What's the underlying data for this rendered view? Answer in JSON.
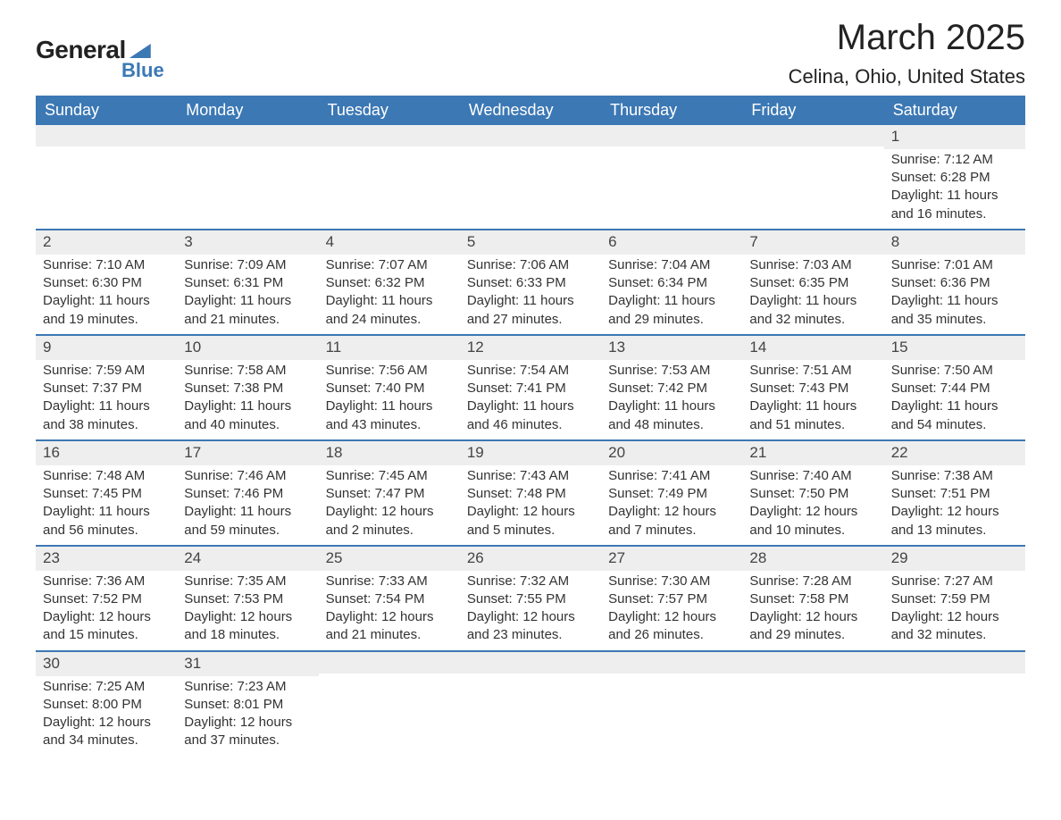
{
  "logo": {
    "main": "General",
    "sub": "Blue"
  },
  "title": "March 2025",
  "location": "Celina, Ohio, United States",
  "colors": {
    "header_bg": "#3c78b4",
    "header_fg": "#ffffff",
    "strip_bg": "#eeeeee",
    "text": "#333333",
    "border": "#3c78b4",
    "page_bg": "#ffffff"
  },
  "typography": {
    "title_fontsize": 40,
    "location_fontsize": 22,
    "header_fontsize": 18,
    "body_fontsize": 15
  },
  "layout": {
    "columns": 7,
    "rows": 6,
    "col_headers_align": "left"
  },
  "weekdays": [
    "Sunday",
    "Monday",
    "Tuesday",
    "Wednesday",
    "Thursday",
    "Friday",
    "Saturday"
  ],
  "labels": {
    "sunrise": "Sunrise:",
    "sunset": "Sunset:",
    "daylight": "Daylight:"
  },
  "weeks": [
    [
      {
        "empty": true
      },
      {
        "empty": true
      },
      {
        "empty": true
      },
      {
        "empty": true
      },
      {
        "empty": true
      },
      {
        "empty": true
      },
      {
        "day": "1",
        "sunrise": "7:12 AM",
        "sunset": "6:28 PM",
        "daylight": "11 hours and 16 minutes."
      }
    ],
    [
      {
        "day": "2",
        "sunrise": "7:10 AM",
        "sunset": "6:30 PM",
        "daylight": "11 hours and 19 minutes."
      },
      {
        "day": "3",
        "sunrise": "7:09 AM",
        "sunset": "6:31 PM",
        "daylight": "11 hours and 21 minutes."
      },
      {
        "day": "4",
        "sunrise": "7:07 AM",
        "sunset": "6:32 PM",
        "daylight": "11 hours and 24 minutes."
      },
      {
        "day": "5",
        "sunrise": "7:06 AM",
        "sunset": "6:33 PM",
        "daylight": "11 hours and 27 minutes."
      },
      {
        "day": "6",
        "sunrise": "7:04 AM",
        "sunset": "6:34 PM",
        "daylight": "11 hours and 29 minutes."
      },
      {
        "day": "7",
        "sunrise": "7:03 AM",
        "sunset": "6:35 PM",
        "daylight": "11 hours and 32 minutes."
      },
      {
        "day": "8",
        "sunrise": "7:01 AM",
        "sunset": "6:36 PM",
        "daylight": "11 hours and 35 minutes."
      }
    ],
    [
      {
        "day": "9",
        "sunrise": "7:59 AM",
        "sunset": "7:37 PM",
        "daylight": "11 hours and 38 minutes."
      },
      {
        "day": "10",
        "sunrise": "7:58 AM",
        "sunset": "7:38 PM",
        "daylight": "11 hours and 40 minutes."
      },
      {
        "day": "11",
        "sunrise": "7:56 AM",
        "sunset": "7:40 PM",
        "daylight": "11 hours and 43 minutes."
      },
      {
        "day": "12",
        "sunrise": "7:54 AM",
        "sunset": "7:41 PM",
        "daylight": "11 hours and 46 minutes."
      },
      {
        "day": "13",
        "sunrise": "7:53 AM",
        "sunset": "7:42 PM",
        "daylight": "11 hours and 48 minutes."
      },
      {
        "day": "14",
        "sunrise": "7:51 AM",
        "sunset": "7:43 PM",
        "daylight": "11 hours and 51 minutes."
      },
      {
        "day": "15",
        "sunrise": "7:50 AM",
        "sunset": "7:44 PM",
        "daylight": "11 hours and 54 minutes."
      }
    ],
    [
      {
        "day": "16",
        "sunrise": "7:48 AM",
        "sunset": "7:45 PM",
        "daylight": "11 hours and 56 minutes."
      },
      {
        "day": "17",
        "sunrise": "7:46 AM",
        "sunset": "7:46 PM",
        "daylight": "11 hours and 59 minutes."
      },
      {
        "day": "18",
        "sunrise": "7:45 AM",
        "sunset": "7:47 PM",
        "daylight": "12 hours and 2 minutes."
      },
      {
        "day": "19",
        "sunrise": "7:43 AM",
        "sunset": "7:48 PM",
        "daylight": "12 hours and 5 minutes."
      },
      {
        "day": "20",
        "sunrise": "7:41 AM",
        "sunset": "7:49 PM",
        "daylight": "12 hours and 7 minutes."
      },
      {
        "day": "21",
        "sunrise": "7:40 AM",
        "sunset": "7:50 PM",
        "daylight": "12 hours and 10 minutes."
      },
      {
        "day": "22",
        "sunrise": "7:38 AM",
        "sunset": "7:51 PM",
        "daylight": "12 hours and 13 minutes."
      }
    ],
    [
      {
        "day": "23",
        "sunrise": "7:36 AM",
        "sunset": "7:52 PM",
        "daylight": "12 hours and 15 minutes."
      },
      {
        "day": "24",
        "sunrise": "7:35 AM",
        "sunset": "7:53 PM",
        "daylight": "12 hours and 18 minutes."
      },
      {
        "day": "25",
        "sunrise": "7:33 AM",
        "sunset": "7:54 PM",
        "daylight": "12 hours and 21 minutes."
      },
      {
        "day": "26",
        "sunrise": "7:32 AM",
        "sunset": "7:55 PM",
        "daylight": "12 hours and 23 minutes."
      },
      {
        "day": "27",
        "sunrise": "7:30 AM",
        "sunset": "7:57 PM",
        "daylight": "12 hours and 26 minutes."
      },
      {
        "day": "28",
        "sunrise": "7:28 AM",
        "sunset": "7:58 PM",
        "daylight": "12 hours and 29 minutes."
      },
      {
        "day": "29",
        "sunrise": "7:27 AM",
        "sunset": "7:59 PM",
        "daylight": "12 hours and 32 minutes."
      }
    ],
    [
      {
        "day": "30",
        "sunrise": "7:25 AM",
        "sunset": "8:00 PM",
        "daylight": "12 hours and 34 minutes."
      },
      {
        "day": "31",
        "sunrise": "7:23 AM",
        "sunset": "8:01 PM",
        "daylight": "12 hours and 37 minutes."
      },
      {
        "empty": true
      },
      {
        "empty": true
      },
      {
        "empty": true
      },
      {
        "empty": true
      },
      {
        "empty": true
      }
    ]
  ]
}
